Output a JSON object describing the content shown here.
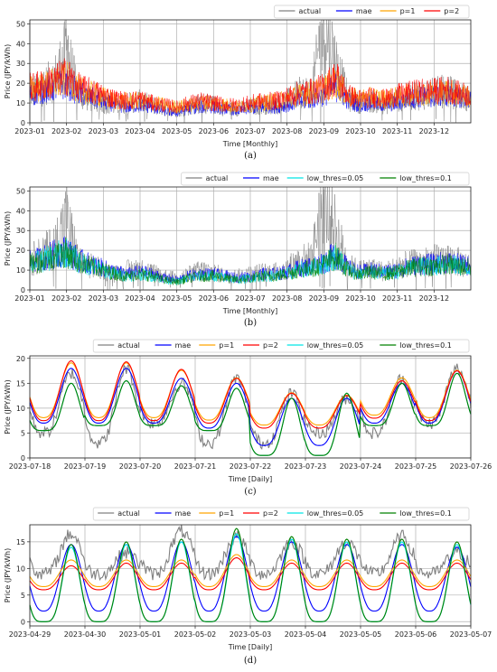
{
  "chart_data": [
    {
      "type": "line",
      "caption": "(a)",
      "xlabel": "Time [Monthly]",
      "ylabel": "Price (JPY/kWh)",
      "ylim": [
        0,
        52
      ],
      "yticks": [
        0,
        10,
        20,
        30,
        40,
        50
      ],
      "x_ticks": [
        "2023-01",
        "2023-02",
        "2023-03",
        "2023-04",
        "2023-05",
        "2023-06",
        "2023-07",
        "2023-08",
        "2023-09",
        "2023-10",
        "2023-11",
        "2023-12"
      ],
      "x_range_months": [
        0,
        12
      ],
      "legend": "top-right",
      "grid": true,
      "series": [
        {
          "name": "actual",
          "color": "#808080",
          "values": [
            15,
            18,
            22,
            36,
            14,
            12,
            10,
            8,
            10,
            11,
            9,
            7,
            6,
            8,
            10,
            9,
            7,
            7,
            8,
            9,
            9,
            11,
            15,
            16,
            49,
            30,
            12,
            10,
            11,
            9,
            12,
            13,
            14,
            15,
            16,
            14,
            12
          ]
        },
        {
          "name": "mae",
          "color": "#0000ff",
          "values": [
            14,
            16,
            18,
            20,
            15,
            13,
            11,
            9,
            8,
            9,
            8,
            6,
            5,
            7,
            8,
            8,
            7,
            6,
            7,
            8,
            8,
            9,
            11,
            12,
            14,
            18,
            11,
            9,
            10,
            9,
            10,
            12,
            13,
            13,
            14,
            13,
            12
          ]
        },
        {
          "name": "p=1",
          "color": "#ffa500",
          "values": [
            17,
            18,
            20,
            22,
            17,
            15,
            13,
            11,
            11,
            11,
            10,
            9,
            8,
            9,
            10,
            10,
            9,
            8,
            9,
            10,
            11,
            12,
            14,
            15,
            17,
            21,
            13,
            12,
            13,
            12,
            13,
            14,
            15,
            15,
            16,
            15,
            13
          ]
        },
        {
          "name": "p=2",
          "color": "#ff0000",
          "values": [
            18,
            19,
            21,
            24,
            18,
            16,
            14,
            12,
            11,
            12,
            10,
            9,
            8,
            10,
            11,
            10,
            9,
            9,
            10,
            11,
            11,
            13,
            15,
            16,
            18,
            23,
            14,
            12,
            13,
            12,
            14,
            15,
            16,
            16,
            17,
            15,
            14
          ]
        }
      ]
    },
    {
      "type": "line",
      "caption": "(b)",
      "xlabel": "Time [Monthly]",
      "ylabel": "Price (JPY/kWh)",
      "ylim": [
        0,
        52
      ],
      "yticks": [
        0,
        10,
        20,
        30,
        40,
        50
      ],
      "x_ticks": [
        "2023-01",
        "2023-02",
        "2023-03",
        "2023-04",
        "2023-05",
        "2023-06",
        "2023-07",
        "2023-08",
        "2023-09",
        "2023-10",
        "2023-11",
        "2023-12"
      ],
      "x_range_months": [
        0,
        12
      ],
      "legend": "top-right",
      "grid": true,
      "series": [
        {
          "name": "actual",
          "color": "#808080",
          "values": [
            15,
            18,
            22,
            36,
            14,
            12,
            10,
            8,
            10,
            11,
            9,
            7,
            6,
            8,
            10,
            9,
            7,
            7,
            8,
            9,
            9,
            11,
            15,
            16,
            49,
            30,
            12,
            10,
            11,
            9,
            12,
            13,
            14,
            15,
            16,
            14,
            12
          ]
        },
        {
          "name": "mae",
          "color": "#0000ff",
          "values": [
            14,
            16,
            18,
            20,
            15,
            13,
            11,
            9,
            8,
            9,
            8,
            6,
            5,
            7,
            8,
            8,
            7,
            6,
            7,
            8,
            8,
            9,
            11,
            12,
            14,
            18,
            11,
            9,
            10,
            9,
            10,
            12,
            13,
            13,
            14,
            13,
            12
          ]
        },
        {
          "name": "low_thres=0.05",
          "color": "#00e5e5",
          "values": [
            13,
            15,
            17,
            19,
            14,
            12,
            10,
            8,
            7,
            8,
            7,
            5,
            4,
            6,
            7,
            7,
            6,
            5,
            6,
            7,
            7,
            8,
            10,
            11,
            13,
            17,
            10,
            8,
            9,
            8,
            9,
            11,
            12,
            12,
            13,
            12,
            11
          ]
        },
        {
          "name": "low_thres=0.1",
          "color": "#008000",
          "values": [
            13,
            15,
            17,
            19,
            14,
            12,
            10,
            8,
            7,
            8,
            7,
            5,
            4,
            6,
            7,
            7,
            6,
            5,
            6,
            7,
            7,
            8,
            10,
            11,
            13,
            17,
            10,
            8,
            9,
            8,
            9,
            11,
            12,
            12,
            13,
            12,
            11
          ]
        }
      ]
    },
    {
      "type": "line",
      "caption": "(c)",
      "xlabel": "Time [Daily]",
      "ylabel": "Price (JPY/kWh)",
      "ylim": [
        0,
        20.5
      ],
      "yticks": [
        0,
        5,
        10,
        15,
        20
      ],
      "x_ticks": [
        "2023-07-18",
        "2023-07-19",
        "2023-07-20",
        "2023-07-21",
        "2023-07-22",
        "2023-07-23",
        "2023-07-24",
        "2023-07-25",
        "2023-07-26"
      ],
      "legend": "top",
      "grid": true,
      "peaks": [
        {
          "day": 0,
          "actual": 17,
          "mae": 18,
          "p1": 18.5,
          "p2": 19.5,
          "low005": 15,
          "low01": 15,
          "min_actual": 5,
          "min_mae": 7,
          "min_p2": 7.5,
          "min_low": 5.5
        },
        {
          "day": 1,
          "actual": 18,
          "mae": 18,
          "p1": 18.5,
          "p2": 19.3,
          "low005": 15.5,
          "low01": 15.5,
          "min_actual": 3,
          "min_mae": 7,
          "min_p2": 7.5,
          "min_low": 6.5
        },
        {
          "day": 2,
          "actual": 15,
          "mae": 16,
          "p1": 17,
          "p2": 17.8,
          "low005": 14.5,
          "low01": 14.5,
          "min_actual": 7,
          "min_mae": 7,
          "min_p2": 7.5,
          "min_low": 6.5
        },
        {
          "day": 3,
          "actual": 16,
          "mae": 15,
          "p1": 15.5,
          "p2": 16,
          "low005": 14,
          "low01": 14,
          "min_actual": 3,
          "min_mae": 6,
          "min_p2": 7,
          "min_low": 5.5
        },
        {
          "day": 4,
          "actual": 13,
          "mae": 12,
          "p1": 12.5,
          "p2": 13,
          "low005": 12,
          "low01": 12,
          "min_actual": 3,
          "min_mae": 2.5,
          "min_p2": 6,
          "min_low": 0.5
        },
        {
          "day": 5,
          "actual": 12,
          "mae": 12,
          "p1": 12,
          "p2": 12.5,
          "low005": 13,
          "low01": 13,
          "min_actual": 5,
          "min_mae": 2.5,
          "min_p2": 6,
          "min_low": 0.5
        },
        {
          "day": 6,
          "actual": 16,
          "mae": 15,
          "p1": 15.5,
          "p2": 15.5,
          "low005": 15,
          "low01": 15,
          "min_actual": 5,
          "min_mae": 7,
          "min_p2": 8,
          "min_low": 6.5
        },
        {
          "day": 7,
          "actual": 18,
          "mae": 17.5,
          "p1": 17,
          "p2": 17.5,
          "low005": 17,
          "low01": 17,
          "min_actual": 7,
          "min_mae": 7,
          "min_p2": 7.5,
          "min_low": 6.5
        }
      ]
    },
    {
      "type": "line",
      "caption": "(d)",
      "xlabel": "Time [Daily]",
      "ylabel": "Price (JPY/kWh)",
      "ylim": [
        -0.8,
        18.2
      ],
      "yticks": [
        0,
        5,
        10,
        15
      ],
      "x_ticks": [
        "2023-04-29",
        "2023-04-30",
        "2023-05-01",
        "2023-05-02",
        "2023-05-03",
        "2023-05-04",
        "2023-05-05",
        "2023-05-06",
        "2023-05-07"
      ],
      "legend": "top",
      "grid": true,
      "peaks": [
        {
          "day": 0,
          "actual": 16.5,
          "mae": 14.5,
          "p1": 11,
          "p2": 10.5,
          "low005": 14,
          "low01": 14.5,
          "min_actual": 9,
          "min_mae": 2,
          "min_p2": 6,
          "min_low": 0
        },
        {
          "day": 1,
          "actual": 13,
          "mae": 14.5,
          "p1": 11,
          "p2": 11,
          "low005": 14.5,
          "low01": 15,
          "min_actual": 9,
          "min_mae": 2,
          "min_p2": 6,
          "min_low": 0
        },
        {
          "day": 2,
          "actual": 17,
          "mae": 15,
          "p1": 11,
          "p2": 11,
          "low005": 15,
          "low01": 15.5,
          "min_actual": 9,
          "min_mae": 2,
          "min_p2": 6,
          "min_low": 0
        },
        {
          "day": 3,
          "actual": 16,
          "mae": 16,
          "p1": 12,
          "p2": 12,
          "low005": 16.5,
          "low01": 17.5,
          "min_actual": 9,
          "min_mae": 2,
          "min_p2": 6,
          "min_low": 0
        },
        {
          "day": 4,
          "actual": 15,
          "mae": 15,
          "p1": 11,
          "p2": 11,
          "low005": 15.5,
          "low01": 16,
          "min_actual": 9,
          "min_mae": 2,
          "min_p2": 6,
          "min_low": 0
        },
        {
          "day": 5,
          "actual": 15,
          "mae": 14.5,
          "p1": 11,
          "p2": 11,
          "low005": 15,
          "low01": 15.5,
          "min_actual": 9,
          "min_mae": 2,
          "min_p2": 6,
          "min_low": 0
        },
        {
          "day": 6,
          "actual": 16,
          "mae": 14.5,
          "p1": 11,
          "p2": 11,
          "low005": 15,
          "low01": 15.5,
          "min_actual": 9,
          "min_mae": 2,
          "min_p2": 6,
          "min_low": 0
        },
        {
          "day": 7,
          "actual": 13,
          "mae": 14,
          "p1": 11,
          "p2": 11,
          "low005": 14.5,
          "low01": 15,
          "min_actual": 9,
          "min_mae": 2,
          "min_p2": 6,
          "min_low": 0
        }
      ]
    }
  ],
  "legend_labels": {
    "actual": "actual",
    "mae": "mae",
    "p1": "p=1",
    "p2": "p=2",
    "low005": "low_thres=0.05",
    "low01": "low_thres=0.1"
  },
  "colors": {
    "actual": "#808080",
    "mae": "#0000ff",
    "p1": "#ffa500",
    "p2": "#ff0000",
    "low005": "#00e5e5",
    "low01": "#008000"
  }
}
